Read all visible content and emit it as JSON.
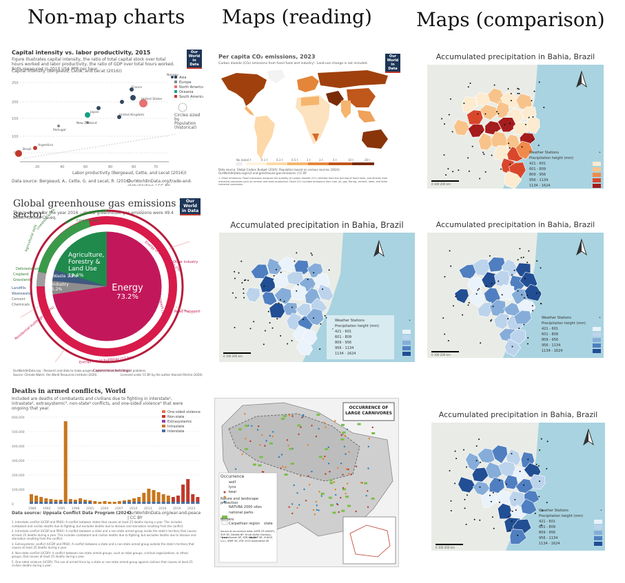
{
  "columns": {
    "col1": "Non-map charts",
    "col2": "Maps (reading)",
    "col3": "Maps (comparison)"
  },
  "panels": {
    "scatter": {
      "title": "Capital intensity vs. labor productivity, 2015",
      "subtitle": "Figure illustrates capital intensity, the ratio of total capital stock over total hours worked and labor productivity, the ratio of GDP over total hours worked. Both measured in 2010 US$ PPP per hour.",
      "ylabel": "Capital Intensity (Bergeaud, Cette, and Lecat (2016))",
      "xlabel": "Labor productivity (Bergeaud, Cette, and Lecat (2016))",
      "source": "Data source: Bergeaud, A., Cette, G. and Lecat, R. (2016)",
      "license": "OurWorldInData.org/trade-and-globalization | CC BY",
      "owid": "Our World in Data",
      "legend": [
        "Asia",
        "Europe",
        "North America",
        "Oceania",
        "South America"
      ],
      "size_note": "Circles sized by Population (historical)"
    },
    "sunburst": {
      "title": "Global greenhouse gas emissions by sector",
      "subtitle": "This is shown for the year 2016 – global greenhouse gas emissions were 49.4 billion tonnes CO₂eq.",
      "owid": "Our World in Data",
      "energy_label": "Energy",
      "energy_value": "73.2%",
      "agri_label": "Agriculture, Forestry & Land Use",
      "agri_value": "18.4%",
      "industry_label": "Industry",
      "industry_value": "5.2%",
      "waste_label": "Waste",
      "waste_value": "3.2%",
      "outer_labels": [
        "Energy in Industry (24.2%)",
        "Transport (16.2%)",
        "Energy use in buildings (17.5%)",
        "Other industry",
        "Road Transport",
        "Residential buildings (10.9%)",
        "Commercial buildings",
        "Livestock & Manure",
        "Agricultural soils",
        "Crop burning",
        "Deforestation",
        "Cropland",
        "Grassland",
        "Landfills",
        "Wastewater",
        "Cement",
        "Chemicals"
      ],
      "footer": "OurWorldInData.org – Research and data to make progress against the world's largest problems.",
      "footer2": "Source: Climate Watch, the World Resources Institute (2020).",
      "license": "Licensed under CC-BY by the author Hannah Ritchie (2020)."
    },
    "conflict": {
      "title": "Deaths in armed conflicts, World",
      "subtitle": "Included are deaths of combatants and civilians due to fighting in interstate¹, intrastate², extrasystemic³, non-state⁴ conflicts, and one-sided violence⁵ that were ongoing that year.",
      "legend": [
        "One-sided violence",
        "Non-state",
        "Extrasystemic",
        "Intrastate",
        "Interstate"
      ],
      "yticks": [
        "600,000",
        "500,000",
        "400,000",
        "300,000",
        "200,000",
        "100,000",
        "0"
      ],
      "xticks": [
        "1989",
        "1992",
        "1995",
        "1998",
        "2001",
        "2004",
        "2007",
        "2010",
        "2013",
        "2016",
        "2019",
        "2023"
      ],
      "source": "Data source: Uppsala Conflict Data Program (2024)",
      "license": "OurWorldInData.org/war-and-peace | CC BY",
      "notes": [
        "1. Interstate conflict (UCDP and PRIO): A conflict between states that causes at least 25 deaths during a year. This includes combatant and civilian deaths due to fighting, but excludes deaths due to disease and starvation resulting from the conflict.",
        "2. Intrastate conflict (UCDP and PRIO): A conflict between a state and a non-state armed group inside the state's territory that causes at least 25 deaths during a year. This includes combatant and civilian deaths due to fighting, but excludes deaths due to disease and starvation resulting from the conflict.",
        "3. Extrasystemic conflict (UCDP and PRIO): A conflict between a state and a non-state armed group outside the state's territory that causes at least 25 deaths during a year.",
        "4. Non-state conflict (UCDP): A conflict between non-state armed groups, such as rebel groups, criminal organizations, or ethnic groups, that causes at least 25 deaths during a year.",
        "5. One-sided violence (UCDP): The use of armed force by a state or non-state armed group against civilians that causes at least 25 civilian deaths during a year."
      ]
    },
    "co2map": {
      "title": "Per capita CO₂ emissions, 2023",
      "subtitle": "Carbon dioxide (CO₂) emissions from fossil fuels and industry¹. Land-use change is not included.",
      "owid": "Our World in Data",
      "scale": [
        "No data",
        "0 t",
        "0.1 t",
        "0.3 t",
        "0.5 t",
        "1 t",
        "3 t",
        "5 t",
        "10 t",
        "20 t"
      ],
      "source": "Data source: Global Carbon Budget (2024); Population based on various sources (2024)",
      "license": "OurWorldInData.org/co2-and-greenhouse-gas-emissions | CC BY",
      "note": "1. Fossil emissions: Fossil emissions measure the quantity of carbon dioxide (CO₂) emitted from the burning of fossil fuels, and directly from industrial processes such as cement and steel production. Fossil CO₂ includes emissions from coal, oil, gas, flaring, cement, steel, and other industrial processes."
    },
    "bahia_reading": {
      "title": "Accumulated precipitation in Bahia, Brazil",
      "legend_title": "Weather Stations",
      "legend_sub": "Precipitation height (mm)",
      "classes": [
        "421 - 601",
        "601 - 809",
        "809 - 956",
        "956 - 1134",
        "1134 - 1624"
      ],
      "scale": "0   100   200 km"
    },
    "carnivores": {
      "title": "OCCURRENCE OF LARGE CARNIVORES",
      "occurrence": "Occurrence",
      "species": [
        "wolf",
        "lynx",
        "bear"
      ],
      "protection": "Nature and landscape protection",
      "protection_items": [
        "NATURA 2000 sites",
        "national parks"
      ],
      "borders": "Borders",
      "border_items": [
        "Carpathian region",
        "state"
      ],
      "source": "Source of occurrence data: AOPK ČR (NDOP), ŠOP SR, Derdák NP, Hnutí DUHA Olomouc, Fórest Vydrah NP, SZB Kiš, ŠOP SR, VÚKOZ, v.v.i., WWF SK, ZSE 2015 Association SK"
    },
    "bahia_orange": {
      "title": "Accumulated precipitation in Bahia, Brazil",
      "legend_title": "Weather Stations",
      "legend_sub": "Precipitation height (mm)",
      "classes": [
        "421 - 601",
        "601 - 809",
        "809 - 956",
        "956 - 1134",
        "1134 - 1624"
      ],
      "scale": "0   100   200 km"
    },
    "bahia_blue1": {
      "title": "Accumulated precipitation in Bahia, Brazil",
      "legend_title": "Weather Stations",
      "legend_sub": "Precipitation height (mm)",
      "classes": [
        "421 - 601",
        "601 - 809",
        "809 - 956",
        "956 - 1134",
        "1134 - 1624"
      ],
      "scale": "0   100   200 km"
    },
    "bahia_blue2": {
      "title": "Accumulated precipitation in Bahia, Brazil",
      "legend_title": "Weather Stations",
      "legend_sub": "Precipitation height (mm)",
      "classes": [
        "421 - 601",
        "601 - 809",
        "809 - 956",
        "956 - 1134",
        "1134 - 1624"
      ],
      "scale": "0   100   200 km"
    }
  },
  "colors": {
    "orange": [
      "#fdebd0",
      "#f8c38a",
      "#f08a4b",
      "#d9472b",
      "#a41c1c"
    ],
    "blue": [
      "#eaf2fb",
      "#bcd3ec",
      "#86add9",
      "#4f7fc0",
      "#224e93"
    ]
  }
}
